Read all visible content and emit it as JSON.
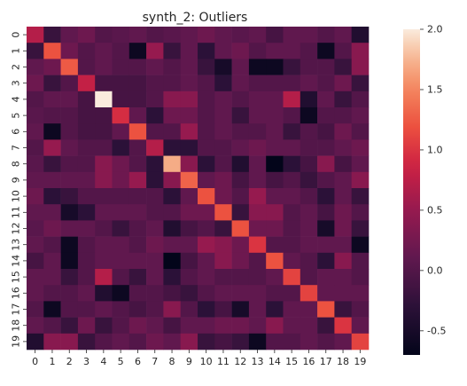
{
  "chart_data": {
    "type": "heatmap",
    "title": "synth_2: Outliers",
    "xlabel": "",
    "ylabel": "",
    "x_categories": [
      "0",
      "1",
      "2",
      "3",
      "4",
      "5",
      "6",
      "7",
      "8",
      "9",
      "10",
      "11",
      "12",
      "13",
      "14",
      "15",
      "16",
      "17",
      "18",
      "19"
    ],
    "y_categories": [
      "0",
      "1",
      "2",
      "3",
      "4",
      "5",
      "6",
      "7",
      "8",
      "9",
      "10",
      "11",
      "12",
      "13",
      "14",
      "15",
      "16",
      "17",
      "18",
      "19"
    ],
    "colormap": "rocket",
    "vmin": -0.7,
    "vmax": 2.0,
    "colorbar_ticks": [
      -0.5,
      0.0,
      0.5,
      1.0,
      1.5,
      2.0
    ],
    "colorbar_tick_labels": [
      "-0.5",
      "0.0",
      "0.5",
      "1.0",
      "1.5",
      "2.0"
    ],
    "values": [
      [
        0.7,
        -0.2,
        0.1,
        0.2,
        0.0,
        0.05,
        0.1,
        0.0,
        0.05,
        0.1,
        0.2,
        0.1,
        0.05,
        0.1,
        -0.1,
        0.1,
        0.1,
        0.0,
        0.1,
        -0.4
      ],
      [
        -0.2,
        1.2,
        0.2,
        0.0,
        0.1,
        0.0,
        -0.6,
        0.5,
        -0.2,
        0.1,
        -0.3,
        0.1,
        0.2,
        0.0,
        0.1,
        0.1,
        0.0,
        -0.6,
        0.0,
        0.4
      ],
      [
        0.1,
        0.2,
        1.25,
        0.0,
        0.1,
        0.0,
        0.0,
        0.1,
        0.0,
        0.1,
        -0.2,
        -0.5,
        0.1,
        -0.6,
        -0.6,
        -0.2,
        0.0,
        0.0,
        -0.2,
        0.4
      ],
      [
        0.2,
        -0.2,
        0.0,
        0.8,
        -0.1,
        -0.1,
        -0.1,
        0.0,
        0.0,
        0.1,
        0.0,
        -0.3,
        0.1,
        0.0,
        0.0,
        0.0,
        0.1,
        0.0,
        0.2,
        -0.2
      ],
      [
        0.0,
        0.1,
        0.1,
        -0.1,
        2.0,
        -0.1,
        -0.1,
        0.0,
        0.4,
        0.4,
        0.0,
        0.1,
        0.0,
        0.1,
        0.1,
        0.7,
        -0.4,
        0.1,
        -0.2,
        0.0
      ],
      [
        0.05,
        0.0,
        0.0,
        -0.1,
        -0.1,
        0.95,
        0.1,
        -0.3,
        0.2,
        0.2,
        0.0,
        0.1,
        -0.2,
        0.1,
        0.1,
        0.0,
        -0.6,
        0.0,
        0.0,
        0.1
      ],
      [
        0.1,
        -0.6,
        0.0,
        -0.1,
        -0.1,
        0.1,
        1.2,
        0.0,
        0.0,
        0.5,
        0.0,
        0.1,
        0.0,
        0.0,
        0.1,
        -0.2,
        0.0,
        -0.1,
        0.2,
        0.0
      ],
      [
        0.0,
        0.5,
        0.1,
        0.0,
        0.0,
        -0.3,
        0.0,
        0.7,
        -0.3,
        -0.3,
        0.0,
        0.0,
        0.1,
        0.2,
        0.1,
        0.1,
        0.0,
        0.0,
        0.1,
        0.2
      ],
      [
        0.05,
        -0.2,
        0.0,
        0.0,
        0.4,
        0.2,
        0.0,
        -0.3,
        1.7,
        0.4,
        -0.3,
        0.0,
        -0.4,
        0.1,
        -0.7,
        -0.3,
        -0.1,
        0.4,
        -0.1,
        0.1
      ],
      [
        0.1,
        0.1,
        0.1,
        0.1,
        0.4,
        0.2,
        0.5,
        -0.3,
        0.4,
        1.3,
        0.1,
        0.2,
        -0.1,
        0.1,
        -0.1,
        0.0,
        -0.2,
        0.0,
        0.1,
        0.4
      ],
      [
        0.2,
        -0.3,
        -0.2,
        0.0,
        0.0,
        0.0,
        0.0,
        0.0,
        -0.3,
        0.1,
        1.2,
        0.2,
        0.0,
        0.5,
        0.1,
        0.1,
        0.0,
        -0.3,
        0.1,
        -0.2
      ],
      [
        0.1,
        0.1,
        -0.5,
        -0.3,
        0.1,
        0.1,
        0.1,
        0.0,
        0.0,
        0.2,
        0.2,
        1.2,
        -0.2,
        0.4,
        0.4,
        0.0,
        0.1,
        -0.1,
        0.2,
        0.0
      ],
      [
        0.05,
        0.2,
        0.1,
        0.1,
        0.0,
        -0.2,
        0.0,
        0.1,
        -0.4,
        -0.1,
        0.0,
        -0.2,
        1.2,
        0.2,
        0.2,
        0.0,
        0.1,
        -0.5,
        0.2,
        -0.2
      ],
      [
        0.1,
        0.0,
        -0.6,
        0.0,
        0.1,
        0.1,
        0.0,
        0.2,
        0.1,
        0.1,
        0.5,
        0.4,
        0.2,
        1.0,
        0.0,
        0.0,
        0.1,
        0.1,
        0.1,
        -0.6
      ],
      [
        -0.1,
        0.1,
        -0.6,
        0.0,
        0.1,
        0.1,
        0.1,
        0.1,
        -0.7,
        -0.1,
        0.1,
        0.4,
        0.2,
        0.0,
        1.2,
        0.1,
        0.0,
        -0.3,
        0.4,
        0.0
      ],
      [
        0.1,
        0.1,
        -0.2,
        0.0,
        0.7,
        0.0,
        -0.2,
        0.1,
        -0.3,
        0.0,
        0.1,
        0.0,
        0.0,
        0.0,
        0.1,
        1.1,
        0.0,
        0.1,
        0.1,
        0.0
      ],
      [
        0.1,
        0.0,
        0.0,
        0.1,
        -0.4,
        -0.6,
        0.0,
        0.0,
        -0.1,
        -0.2,
        0.0,
        0.1,
        0.1,
        0.1,
        0.0,
        0.0,
        1.1,
        0.1,
        0.1,
        0.1
      ],
      [
        0.0,
        -0.6,
        0.0,
        0.0,
        0.1,
        0.0,
        -0.1,
        0.0,
        0.4,
        0.0,
        -0.3,
        -0.1,
        -0.5,
        0.1,
        -0.3,
        0.1,
        0.1,
        1.2,
        -0.2,
        0.0
      ],
      [
        0.1,
        0.0,
        -0.2,
        0.2,
        -0.2,
        0.0,
        0.2,
        0.1,
        -0.1,
        0.1,
        0.1,
        0.2,
        0.2,
        0.1,
        0.4,
        0.1,
        0.1,
        -0.2,
        1.0,
        0.1
      ],
      [
        -0.4,
        0.4,
        0.4,
        -0.2,
        0.0,
        0.1,
        0.0,
        0.2,
        0.1,
        0.4,
        -0.2,
        -0.1,
        -0.2,
        -0.6,
        0.0,
        0.0,
        0.1,
        0.0,
        0.1,
        1.1
      ]
    ]
  }
}
